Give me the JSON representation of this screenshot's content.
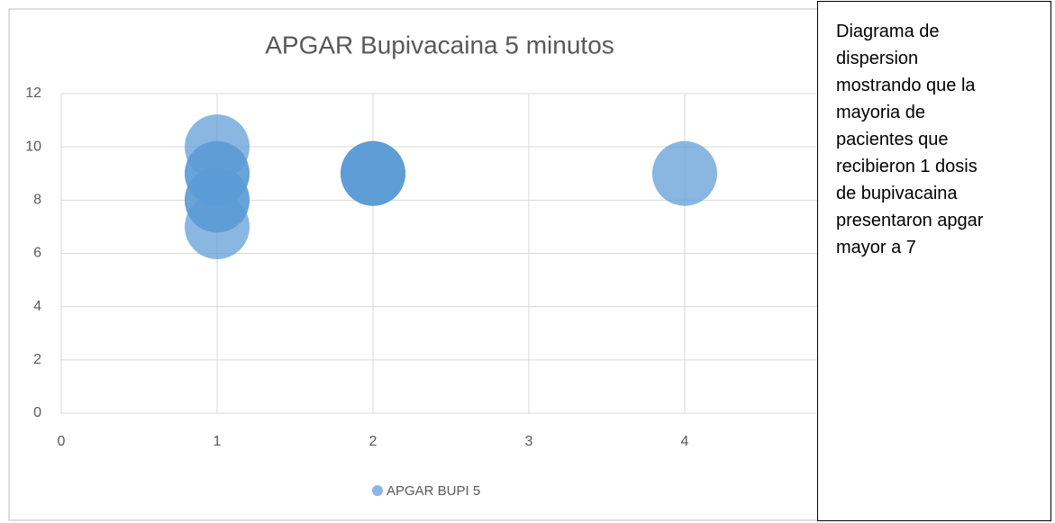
{
  "chart_data": {
    "type": "scatter",
    "title": "APGAR Bupivacaina 5 minutos",
    "series": [
      {
        "name": "APGAR BUPI 5",
        "color": "#5b9bd5",
        "x": [
          1,
          1,
          1,
          1,
          1,
          1,
          2,
          2,
          2,
          4
        ],
        "values": [
          10,
          9,
          9,
          8,
          8,
          7,
          9,
          9,
          9,
          9
        ]
      }
    ],
    "xlim": [
      0,
      5
    ],
    "xticks": [
      0,
      1,
      2,
      3,
      4
    ],
    "ylim": [
      0,
      12
    ],
    "yticks": [
      0,
      2,
      4,
      6,
      8,
      10,
      12
    ],
    "grid": true,
    "legend": "bottom"
  },
  "text_box": {
    "lines": [
      "Diagrama de",
      "dispersion",
      "mostrando que la",
      "mayoria de",
      "pacientes que",
      "recibieron 1 dosis",
      "de bupivacaina",
      "presentaron apgar",
      "mayor a 7"
    ]
  }
}
